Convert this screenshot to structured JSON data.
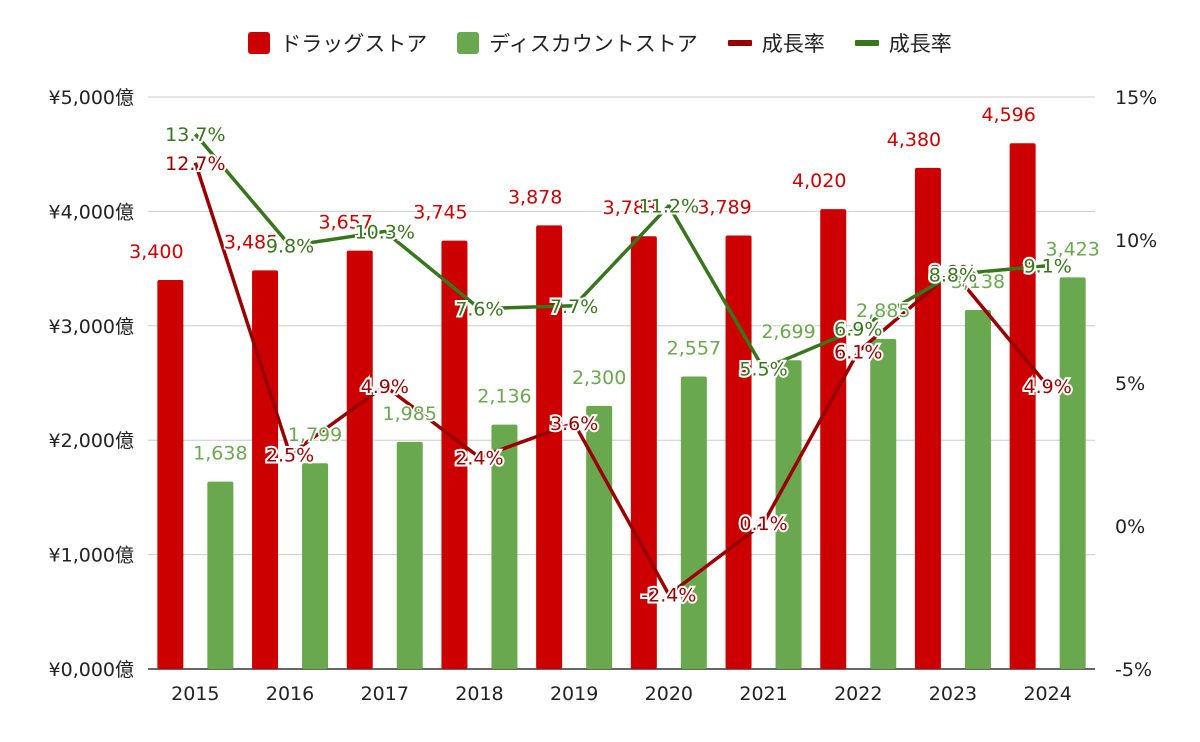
{
  "chart_data": {
    "type": "bar",
    "categories": [
      "2015",
      "2016",
      "2017",
      "2018",
      "2019",
      "2020",
      "2021",
      "2022",
      "2023",
      "2024"
    ],
    "series": [
      {
        "name": "ドラッグストア",
        "type": "bar",
        "axis": "left",
        "color": "#cc0000",
        "values": [
          3400,
          3485,
          3657,
          3745,
          3878,
          3783,
          3789,
          4020,
          4380,
          4596
        ],
        "labels": [
          "3,400",
          "3,485",
          "3,657",
          "3,745",
          "3,878",
          "3,783",
          "3,789",
          "4,020",
          "4,380",
          "4,596"
        ]
      },
      {
        "name": "ディスカウントストア",
        "type": "bar",
        "axis": "left",
        "color": "#6aa84f",
        "values": [
          1638,
          1799,
          1985,
          2136,
          2300,
          2557,
          2699,
          2885,
          3138,
          3423
        ],
        "labels": [
          "1,638",
          "1,799",
          "1,985",
          "2,136",
          "2,300",
          "2,557",
          "2,699",
          "2,885",
          "3,138",
          "3,423"
        ]
      },
      {
        "name": "成長率",
        "type": "line",
        "axis": "right",
        "color": "#990000",
        "values": [
          12.7,
          2.5,
          4.9,
          2.4,
          3.6,
          -2.4,
          0.1,
          6.1,
          8.9,
          4.9
        ],
        "labels": [
          "12.7%",
          "2.5%",
          "4.9%",
          "2.4%",
          "3.6%",
          "-2.4%",
          "0.1%",
          "6.1%",
          "8.9%",
          "4.9%"
        ]
      },
      {
        "name": "成長率",
        "type": "line",
        "axis": "right",
        "color": "#38761d",
        "values": [
          13.7,
          9.8,
          10.3,
          7.6,
          7.7,
          11.2,
          5.5,
          6.9,
          8.8,
          9.1
        ],
        "labels": [
          "13.7%",
          "9.8%",
          "10.3%",
          "7.6%",
          "7.7%",
          "11.2%",
          "5.5%",
          "6.9%",
          "8.8%",
          "9.1%"
        ]
      }
    ],
    "y_left": {
      "min": 0,
      "max": 5000,
      "ticks": [
        {
          "value": 0,
          "label": "¥0,000億"
        },
        {
          "value": 1000,
          "label": "¥1,000億"
        },
        {
          "value": 2000,
          "label": "¥2,000億"
        },
        {
          "value": 3000,
          "label": "¥3,000億"
        },
        {
          "value": 4000,
          "label": "¥4,000億"
        },
        {
          "value": 5000,
          "label": "¥5,000億"
        }
      ]
    },
    "y_right": {
      "min": -5,
      "max": 15,
      "ticks": [
        {
          "value": -5,
          "label": "-5%"
        },
        {
          "value": 0,
          "label": "0%"
        },
        {
          "value": 5,
          "label": "5%"
        },
        {
          "value": 10,
          "label": "10%"
        },
        {
          "value": 15,
          "label": "15%"
        }
      ]
    },
    "grid": true,
    "legend_position": "top"
  }
}
